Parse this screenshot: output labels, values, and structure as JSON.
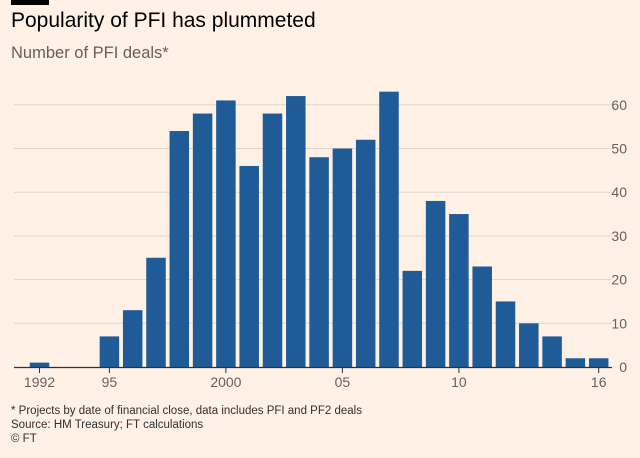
{
  "header": {
    "title": "Popularity of PFI has plummeted",
    "subtitle": "Number of PFI deals*"
  },
  "footer": {
    "footnote": "* Projects by date of financial close, data includes PFI and PF2 deals",
    "source": "Source: HM Treasury; FT calculations",
    "copyright": "© FT"
  },
  "colors": {
    "bar": "#1f5b96",
    "gridline": "#e3d5c8",
    "baseline": "#33302e",
    "background": "#fff1e5"
  },
  "chart_data": {
    "type": "bar",
    "title": "Popularity of PFI has plummeted",
    "subtitle": "Number of PFI deals*",
    "xlabel": "",
    "ylabel": "Number of PFI deals",
    "categories": [
      "1992",
      "1993",
      "1994",
      "1995",
      "1996",
      "1997",
      "1998",
      "1999",
      "2000",
      "2001",
      "2002",
      "2003",
      "2004",
      "2005",
      "2006",
      "2007",
      "2008",
      "2009",
      "2010",
      "2011",
      "2012",
      "2013",
      "2014",
      "2015",
      "2016"
    ],
    "values": [
      1,
      0,
      0,
      7,
      13,
      25,
      54,
      58,
      61,
      46,
      58,
      62,
      48,
      50,
      52,
      63,
      22,
      38,
      35,
      23,
      15,
      10,
      7,
      2,
      2
    ],
    "x_tick_labels": [
      {
        "category": "1992",
        "label": "1992"
      },
      {
        "category": "1995",
        "label": "95"
      },
      {
        "category": "2000",
        "label": "2000"
      },
      {
        "category": "2005",
        "label": "05"
      },
      {
        "category": "2010",
        "label": "10"
      },
      {
        "category": "2016",
        "label": "16"
      }
    ],
    "y_ticks": [
      0,
      10,
      20,
      30,
      40,
      50,
      60
    ],
    "ylim": [
      0,
      65
    ],
    "y_axis_side": "right",
    "grid": true,
    "legend": "none"
  }
}
